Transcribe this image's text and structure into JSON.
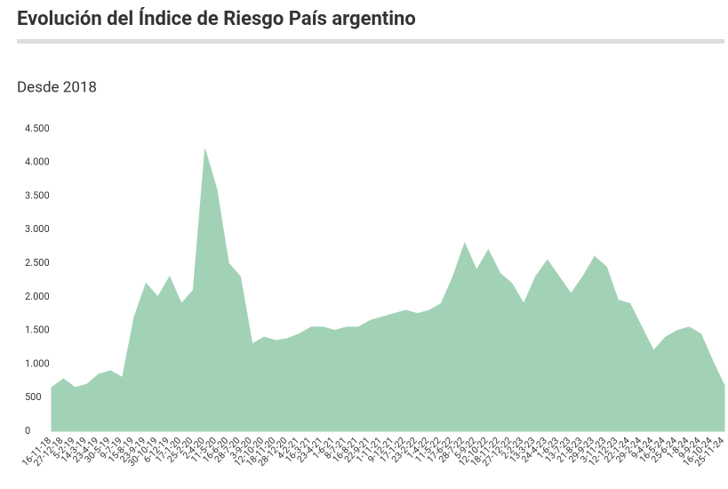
{
  "chart_data": {
    "type": "area",
    "title": "Evolución del Índice de Riesgo País argentino",
    "subtitle": "Desde 2018",
    "color": "#a2d2b6",
    "categories": [
      "16-11-18",
      "27-12-18",
      "5-2-19",
      "14-3-19",
      "23-4-19",
      "30-5-19",
      "9-7-19",
      "15-8-19",
      "23-9-19",
      "30-10-19",
      "6-12-19",
      "17-1-20",
      "25-2-20",
      "2-4-20",
      "11-5-20",
      "16-6-20",
      "28-7-20",
      "3-9-20",
      "12-10-20",
      "18-11-20",
      "28-12-20",
      "4-2-21",
      "16-3-21",
      "23-4-21",
      "1-6-21",
      "8-7-21",
      "16-8-21",
      "22-9-21",
      "1-11-21",
      "9-12-21",
      "17-1-22",
      "23-2-22",
      "1-4-22",
      "11-5-22",
      "17-6-22",
      "28-7-22",
      "5-9-22",
      "12-10-22",
      "18-11-22",
      "27-12-22",
      "2-2-23",
      "13-3-23",
      "24-4-23",
      "1-6-23",
      "13-7-23",
      "21-8-23",
      "29-9-23",
      "3-11-23",
      "12-12-23",
      "22-1-24",
      "29-2-24",
      "9-4-24",
      "16-5-24",
      "25-6-24",
      "1-8-24",
      "9-9-24",
      "16-10-24",
      "25-11-24"
    ],
    "values": [
      650,
      780,
      650,
      700,
      850,
      900,
      800,
      1700,
      2200,
      2000,
      2300,
      1900,
      2100,
      4200,
      3600,
      2500,
      2300,
      1300,
      1400,
      1350,
      1380,
      1450,
      1550,
      1550,
      1500,
      1550,
      1550,
      1650,
      1700,
      1750,
      1800,
      1750,
      1800,
      1900,
      2300,
      2800,
      2400,
      2700,
      2350,
      2200,
      1900,
      2300,
      2550,
      2300,
      2050,
      2300,
      2600,
      2450,
      1950,
      1900,
      1550,
      1200,
      1400,
      1500,
      1550,
      1450,
      1050,
      680
    ],
    "ylim": [
      0,
      4500
    ],
    "yticks": [
      0,
      500,
      {
        "value": 1000,
        "label": "1.000"
      },
      {
        "value": 1500,
        "label": "1.500"
      },
      {
        "value": 2000,
        "label": "2.000"
      },
      {
        "value": 2500,
        "label": "2.500"
      },
      {
        "value": 3000,
        "label": "3.000"
      },
      {
        "value": 3500,
        "label": "3.500"
      },
      {
        "value": 4000,
        "label": "4.000"
      },
      {
        "value": 4500,
        "label": "4.500"
      }
    ]
  }
}
